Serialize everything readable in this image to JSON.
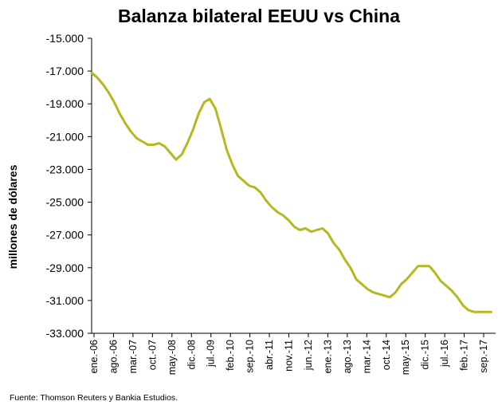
{
  "chart_data": {
    "type": "line",
    "title": "Balanza bilateral EEUU vs China",
    "xlabel": "",
    "ylabel": "millones de dólares",
    "source": "Fuente: Thomson Reuters y Bankia Estudios.",
    "ylim": [
      -33000,
      -15000
    ],
    "y_ticks": [
      "-15.000",
      "-17.000",
      "-19.000",
      "-21.000",
      "-23.000",
      "-25.000",
      "-27.000",
      "-29.000",
      "-31.000",
      "-33.000"
    ],
    "y_tick_values": [
      -15000,
      -17000,
      -19000,
      -21000,
      -23000,
      -25000,
      -27000,
      -29000,
      -31000,
      -33000
    ],
    "x_ticks": [
      "ene.-06",
      "ago.-06",
      "mar.-07",
      "oct.-07",
      "may.-08",
      "dic.-08",
      "jul.-09",
      "feb.-10",
      "sep.-10",
      "abr.-11",
      "nov.-11",
      "jun.-12",
      "ene.-13",
      "ago.-13",
      "mar.-14",
      "oct.-14",
      "may.-15",
      "dic.-15",
      "jul.-16",
      "feb.-17",
      "sep.-17"
    ],
    "x_start": "2006-01",
    "x_end": "2017-12",
    "line_color": "#b5b81e",
    "grid": false,
    "series": [
      {
        "x": [
          "2006-01",
          "2006-03",
          "2006-05",
          "2006-07",
          "2006-09",
          "2006-11",
          "2007-01",
          "2007-03",
          "2007-05",
          "2007-07",
          "2007-09",
          "2007-11",
          "2008-01",
          "2008-03",
          "2008-05",
          "2008-07",
          "2008-09",
          "2008-11",
          "2009-01",
          "2009-03",
          "2009-05",
          "2009-07",
          "2009-09",
          "2009-11",
          "2010-01",
          "2010-03",
          "2010-05",
          "2010-07",
          "2010-09",
          "2010-11",
          "2011-01",
          "2011-03",
          "2011-05",
          "2011-07",
          "2011-09",
          "2011-11",
          "2012-01",
          "2012-03",
          "2012-05",
          "2012-07",
          "2012-09",
          "2012-11",
          "2013-01",
          "2013-03",
          "2013-05",
          "2013-07",
          "2013-09",
          "2013-11",
          "2014-01",
          "2014-03",
          "2014-05",
          "2014-07",
          "2014-09",
          "2014-11",
          "2015-01",
          "2015-03",
          "2015-05",
          "2015-07",
          "2015-09",
          "2015-11",
          "2016-01",
          "2016-03",
          "2016-05",
          "2016-07",
          "2016-09",
          "2016-11",
          "2017-01",
          "2017-03",
          "2017-05",
          "2017-07",
          "2017-09",
          "2017-11"
        ],
        "values": [
          -17100,
          -17400,
          -17800,
          -18300,
          -18900,
          -19600,
          -20200,
          -20700,
          -21100,
          -21300,
          -21500,
          -21500,
          -21400,
          -21600,
          -22000,
          -22400,
          -22100,
          -21400,
          -20600,
          -19600,
          -18900,
          -18700,
          -19300,
          -20500,
          -21800,
          -22700,
          -23400,
          -23700,
          -24000,
          -24100,
          -24400,
          -24900,
          -25300,
          -25600,
          -25800,
          -26100,
          -26500,
          -26700,
          -26600,
          -26800,
          -26700,
          -26600,
          -26900,
          -27500,
          -27900,
          -28500,
          -29000,
          -29700,
          -30000,
          -30300,
          -30500,
          -30600,
          -30700,
          -30800,
          -30500,
          -30000,
          -29700,
          -29300,
          -28900,
          -28900,
          -28900,
          -29300,
          -29800,
          -30100,
          -30400,
          -30800,
          -31300,
          -31600,
          -31700,
          -31700,
          -31700,
          -31700
        ]
      }
    ]
  }
}
